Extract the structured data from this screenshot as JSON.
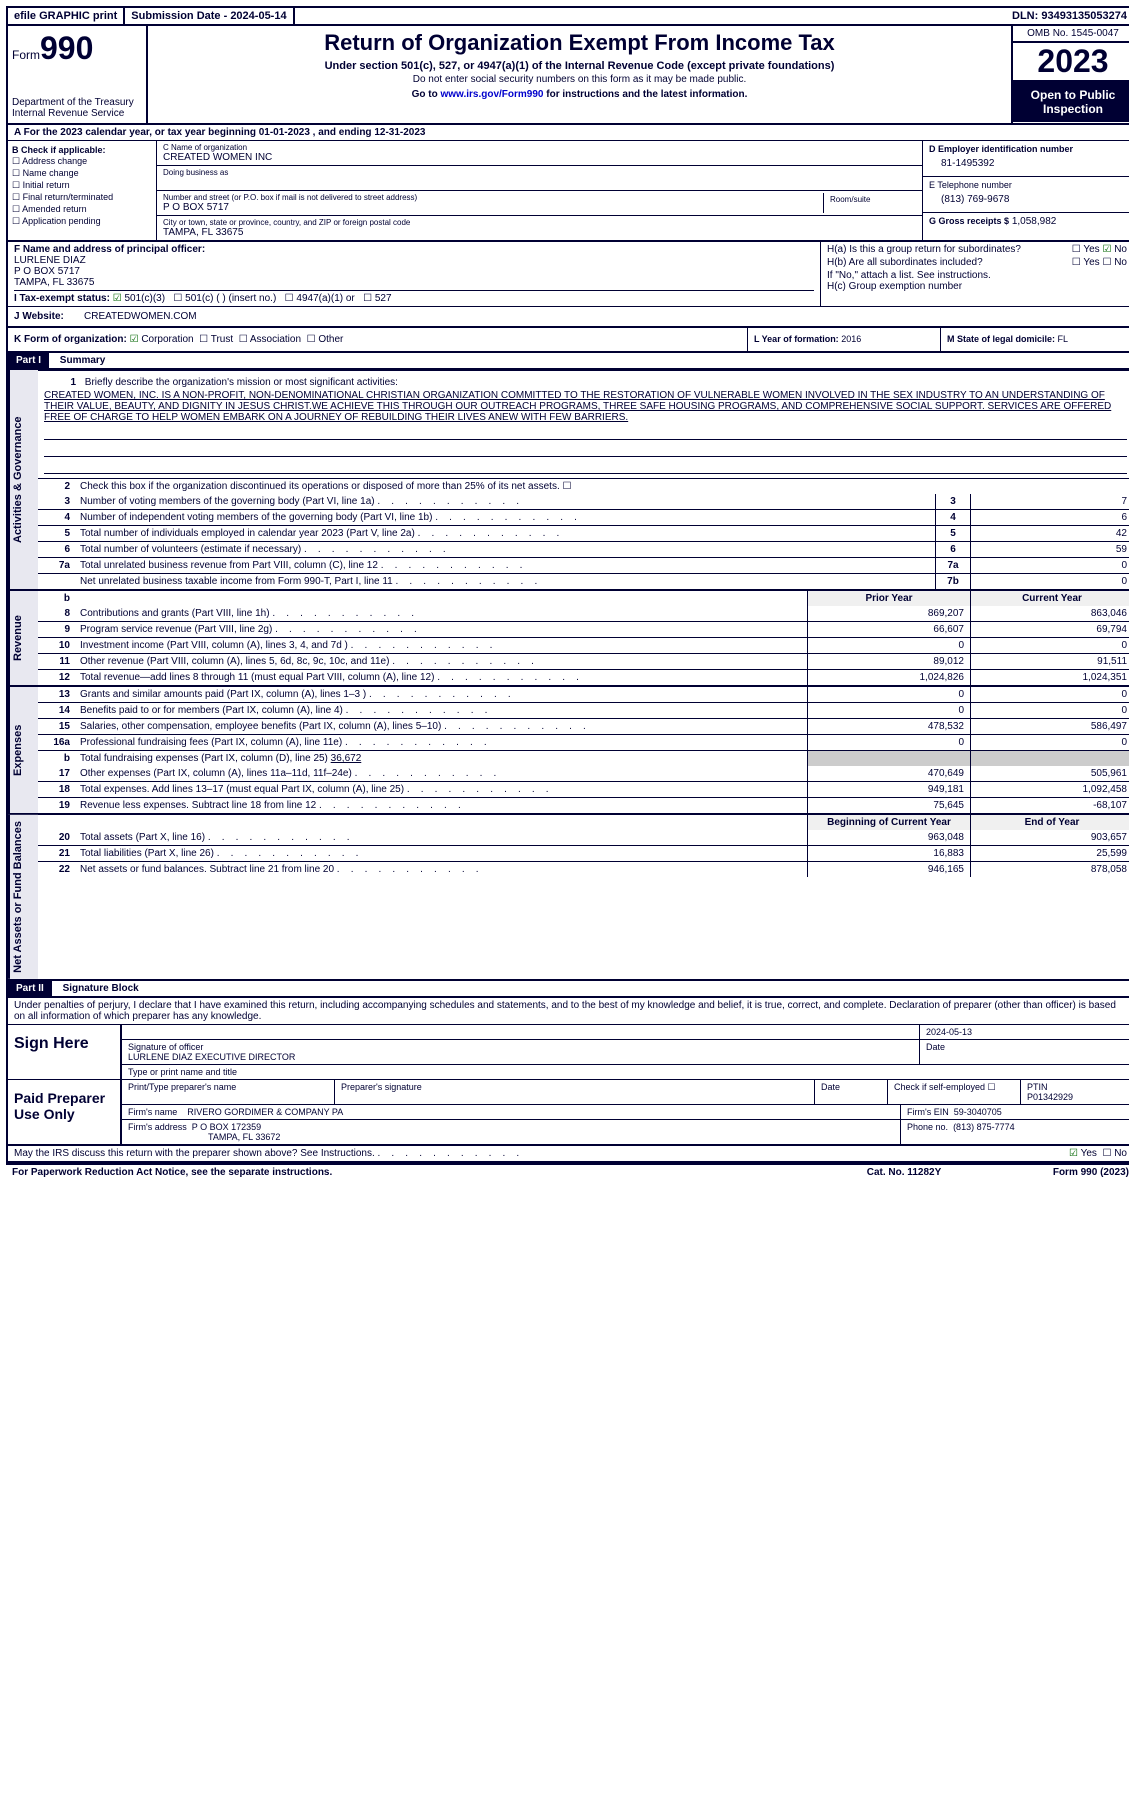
{
  "top_bar": {
    "efile": "efile GRAPHIC print",
    "submission": "Submission Date - 2024-05-14",
    "dln": "DLN: 93493135053274"
  },
  "header": {
    "form_prefix": "Form",
    "form_number": "990",
    "dept": "Department of the Treasury",
    "irs": "Internal Revenue Service",
    "title": "Return of Organization Exempt From Income Tax",
    "subtitle": "Under section 501(c), 527, or 4947(a)(1) of the Internal Revenue Code (except private foundations)",
    "note": "Do not enter social security numbers on this form as it may be made public.",
    "goto_prefix": "Go to ",
    "goto_link": "www.irs.gov/Form990",
    "goto_suffix": " for instructions and the latest information.",
    "omb": "OMB No. 1545-0047",
    "year": "2023",
    "open": "Open to Public Inspection"
  },
  "row_a": "A  For the 2023 calendar year, or tax year beginning 01-01-2023   , and ending 12-31-2023",
  "col_b": {
    "header": "B Check if applicable:",
    "items": [
      "Address change",
      "Name change",
      "Initial return",
      "Final return/terminated",
      "Amended return",
      "Application pending"
    ]
  },
  "col_c": {
    "name_label": "C Name of organization",
    "name": "CREATED WOMEN INC",
    "dba_label": "Doing business as",
    "street_label": "Number and street (or P.O. box if mail is not delivered to street address)",
    "street": "P O BOX 5717",
    "room_label": "Room/suite",
    "city_label": "City or town, state or province, country, and ZIP or foreign postal code",
    "city": "TAMPA, FL  33675"
  },
  "col_d": {
    "ein_label": "D Employer identification number",
    "ein": "81-1495392",
    "tel_label": "E Telephone number",
    "tel": "(813) 769-9678",
    "gross_label": "G Gross receipts $",
    "gross": "1,058,982"
  },
  "col_f": {
    "label": "F  Name and address of principal officer:",
    "name": "LURLENE DIAZ",
    "street": "P O BOX 5717",
    "city": "TAMPA, FL  33675"
  },
  "col_h": {
    "a_label": "H(a)  Is this a group return for subordinates?",
    "b_label": "H(b)  Are all subordinates included?",
    "note": "If \"No,\" attach a list. See instructions.",
    "c_label": "H(c)  Group exemption number",
    "yes": "Yes",
    "no": "No"
  },
  "row_i": {
    "label": "I  Tax-exempt status:",
    "opt1": "501(c)(3)",
    "opt2": "501(c) (  ) (insert no.)",
    "opt3": "4947(a)(1) or",
    "opt4": "527"
  },
  "row_j": {
    "label": "J  Website:",
    "value": "CREATEDWOMEN.COM"
  },
  "row_k": {
    "label": "K Form of organization:",
    "corp": "Corporation",
    "trust": "Trust",
    "assoc": "Association",
    "other": "Other"
  },
  "row_l": {
    "label": "L Year of formation:",
    "value": "2016"
  },
  "row_m": {
    "label": "M State of legal domicile:",
    "value": "FL"
  },
  "part1": {
    "header": "Part I",
    "title": "Summary",
    "line1_label": "Briefly describe the organization's mission or most significant activities:",
    "mission": "CREATED WOMEN, INC. IS A NON-PROFIT, NON-DENOMINATIONAL CHRISTIAN ORGANIZATION COMMITTED TO THE RESTORATION OF VULNERABLE WOMEN INVOLVED IN THE SEX INDUSTRY TO AN UNDERSTANDING OF THEIR VALUE, BEAUTY, AND DIGNITY IN JESUS CHRIST.WE ACHIEVE THIS THROUGH OUR OUTREACH PROGRAMS, THREE SAFE HOUSING PROGRAMS, AND COMPREHENSIVE SOCIAL SUPPORT. SERVICES ARE OFFERED FREE OF CHARGE TO HELP WOMEN EMBARK ON A JOURNEY OF REBUILDING THEIR LIVES ANEW WITH FEW BARRIERS.",
    "line2": "Check this box      if the organization discontinued its operations or disposed of more than 25% of its net assets.",
    "tabs": {
      "ag": "Activities & Governance",
      "rev": "Revenue",
      "exp": "Expenses",
      "net": "Net Assets or Fund Balances"
    },
    "lines_gov": [
      {
        "n": "3",
        "t": "Number of voting members of the governing body (Part VI, line 1a)",
        "box": "3",
        "v": "7"
      },
      {
        "n": "4",
        "t": "Number of independent voting members of the governing body (Part VI, line 1b)",
        "box": "4",
        "v": "6"
      },
      {
        "n": "5",
        "t": "Total number of individuals employed in calendar year 2023 (Part V, line 2a)",
        "box": "5",
        "v": "42"
      },
      {
        "n": "6",
        "t": "Total number of volunteers (estimate if necessary)",
        "box": "6",
        "v": "59"
      },
      {
        "n": "7a",
        "t": "Total unrelated business revenue from Part VIII, column (C), line 12",
        "box": "7a",
        "v": "0"
      },
      {
        "n": "",
        "t": "Net unrelated business taxable income from Form 990-T, Part I, line 11",
        "box": "7b",
        "v": "0"
      }
    ],
    "col_headers": {
      "prior": "Prior Year",
      "current": "Current Year",
      "begin": "Beginning of Current Year",
      "end": "End of Year"
    },
    "lines_rev": [
      {
        "n": "8",
        "t": "Contributions and grants (Part VIII, line 1h)",
        "p": "869,207",
        "c": "863,046"
      },
      {
        "n": "9",
        "t": "Program service revenue (Part VIII, line 2g)",
        "p": "66,607",
        "c": "69,794"
      },
      {
        "n": "10",
        "t": "Investment income (Part VIII, column (A), lines 3, 4, and 7d )",
        "p": "0",
        "c": "0"
      },
      {
        "n": "11",
        "t": "Other revenue (Part VIII, column (A), lines 5, 6d, 8c, 9c, 10c, and 11e)",
        "p": "89,012",
        "c": "91,511"
      },
      {
        "n": "12",
        "t": "Total revenue—add lines 8 through 11 (must equal Part VIII, column (A), line 12)",
        "p": "1,024,826",
        "c": "1,024,351"
      }
    ],
    "lines_exp": [
      {
        "n": "13",
        "t": "Grants and similar amounts paid (Part IX, column (A), lines 1–3 )",
        "p": "0",
        "c": "0"
      },
      {
        "n": "14",
        "t": "Benefits paid to or for members (Part IX, column (A), line 4)",
        "p": "0",
        "c": "0"
      },
      {
        "n": "15",
        "t": "Salaries, other compensation, employee benefits (Part IX, column (A), lines 5–10)",
        "p": "478,532",
        "c": "586,497"
      },
      {
        "n": "16a",
        "t": "Professional fundraising fees (Part IX, column (A), line 11e)",
        "p": "0",
        "c": "0"
      }
    ],
    "line_b": {
      "n": "b",
      "t": "Total fundraising expenses (Part IX, column (D), line 25)",
      "v": "36,672"
    },
    "lines_exp2": [
      {
        "n": "17",
        "t": "Other expenses (Part IX, column (A), lines 11a–11d, 11f–24e)",
        "p": "470,649",
        "c": "505,961"
      },
      {
        "n": "18",
        "t": "Total expenses. Add lines 13–17 (must equal Part IX, column (A), line 25)",
        "p": "949,181",
        "c": "1,092,458"
      },
      {
        "n": "19",
        "t": "Revenue less expenses. Subtract line 18 from line 12",
        "p": "75,645",
        "c": "-68,107"
      }
    ],
    "lines_net": [
      {
        "n": "20",
        "t": "Total assets (Part X, line 16)",
        "p": "963,048",
        "c": "903,657"
      },
      {
        "n": "21",
        "t": "Total liabilities (Part X, line 26)",
        "p": "16,883",
        "c": "25,599"
      },
      {
        "n": "22",
        "t": "Net assets or fund balances. Subtract line 21 from line 20",
        "p": "946,165",
        "c": "878,058"
      }
    ]
  },
  "part2": {
    "header": "Part II",
    "title": "Signature Block",
    "declaration": "Under penalties of perjury, I declare that I have examined this return, including accompanying schedules and statements, and to the best of my knowledge and belief, it is true, correct, and complete. Declaration of preparer (other than officer) is based on all information of which preparer has any knowledge.",
    "sign_here": "Sign Here",
    "sig_date": "2024-05-13",
    "sig_officer_label": "Signature of officer",
    "sig_officer": "LURLENE DIAZ  EXECUTIVE DIRECTOR",
    "sig_type_label": "Type or print name and title",
    "date_label": "Date",
    "paid": "Paid Preparer Use Only",
    "prep_name_label": "Print/Type preparer's name",
    "prep_sig_label": "Preparer's signature",
    "check_self": "Check        if self-employed",
    "ptin_label": "PTIN",
    "ptin": "P01342929",
    "firm_name_label": "Firm's name",
    "firm_name": "RIVERO GORDIMER & COMPANY PA",
    "firm_ein_label": "Firm's EIN",
    "firm_ein": "59-3040705",
    "firm_addr_label": "Firm's address",
    "firm_addr1": "P O BOX 172359",
    "firm_addr2": "TAMPA, FL  33672",
    "phone_label": "Phone no.",
    "phone": "(813) 875-7774",
    "discuss": "May the IRS discuss this return with the preparer shown above? See Instructions.",
    "yes": "Yes",
    "no": "No"
  },
  "footer": {
    "paperwork": "For Paperwork Reduction Act Notice, see the separate instructions.",
    "cat": "Cat. No. 11282Y",
    "form": "Form 990 (2023)"
  }
}
